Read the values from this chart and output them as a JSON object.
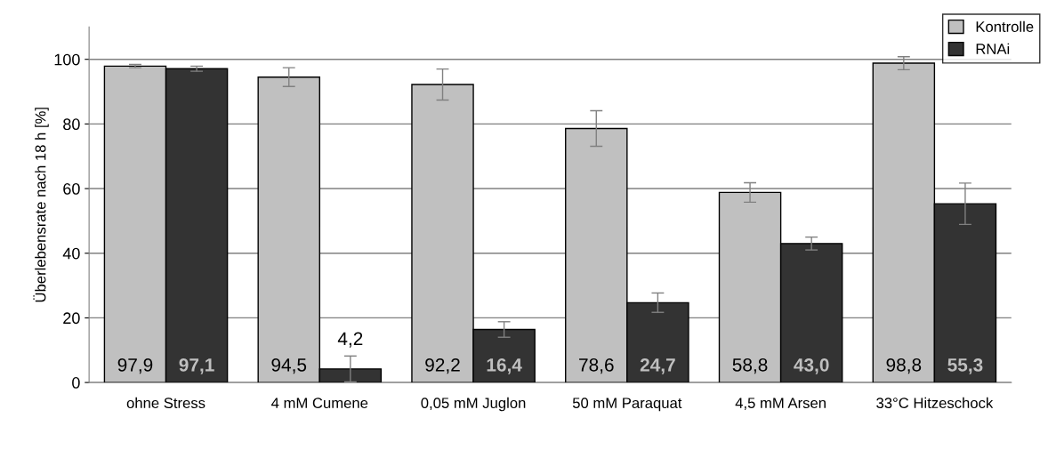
{
  "chart_data": {
    "type": "bar",
    "ylabel": "Überlebensrate nach 18 h [%]",
    "categories": [
      "ohne Stress",
      "4 mM Cumene",
      "0,05 mM Juglon",
      "50 mM Paraquat",
      "4,5 mM Arsen",
      "33°C Hitzeschock"
    ],
    "series": [
      {
        "name": "Kontrolle",
        "color": "#c0c0c0",
        "values": [
          97.9,
          94.5,
          92.2,
          78.6,
          58.8,
          98.8
        ],
        "errors": [
          0.5,
          2.9,
          4.8,
          5.5,
          3.0,
          2.0
        ],
        "value_labels": [
          "97,9",
          "94,5",
          "92,2",
          "78,6",
          "58,8",
          "98,8"
        ]
      },
      {
        "name": "RNAi",
        "color": "#333333",
        "values": [
          97.1,
          4.2,
          16.4,
          24.7,
          43.0,
          55.3
        ],
        "errors": [
          0.8,
          4.0,
          2.4,
          3.0,
          2.0,
          6.4
        ],
        "value_labels": [
          "97,1",
          "4,2",
          "16,4",
          "24,7",
          "43,0",
          "55,3"
        ]
      }
    ],
    "ylim": [
      0,
      110
    ],
    "yticks": [
      0,
      20,
      40,
      60,
      80,
      100
    ],
    "grid": "y",
    "legend": "top right"
  }
}
